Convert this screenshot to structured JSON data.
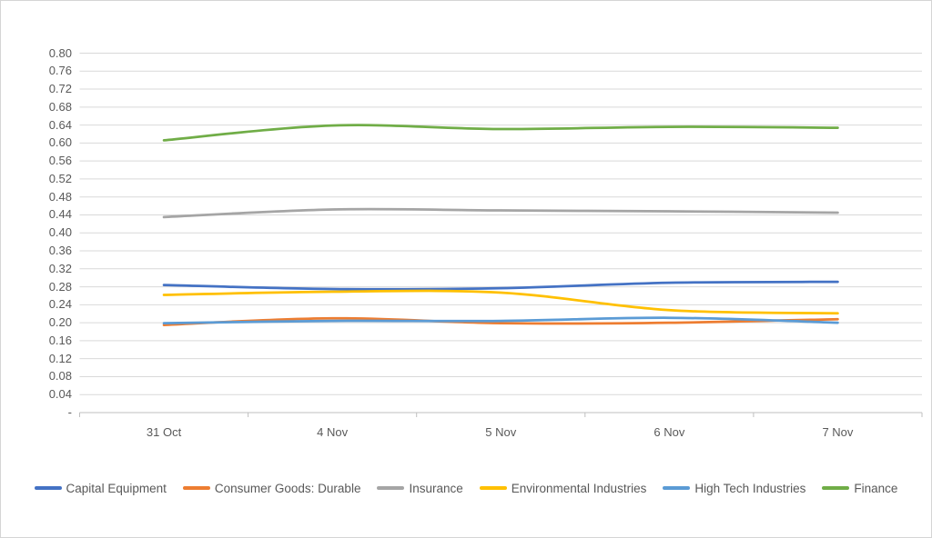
{
  "chart_data": {
    "type": "line",
    "title": "",
    "smooth": true,
    "grid": true,
    "legend_position": "bottom",
    "categories": [
      "31 Oct",
      "4 Nov",
      "5 Nov",
      "6 Nov",
      "7 Nov"
    ],
    "series": [
      {
        "name": "Capital Equipment",
        "color": "#4472C4",
        "values": [
          0.284,
          0.275,
          0.277,
          0.289,
          0.291
        ]
      },
      {
        "name": "Consumer Goods: Durable",
        "color": "#ED7D31",
        "values": [
          0.195,
          0.21,
          0.199,
          0.2,
          0.208
        ]
      },
      {
        "name": "Insurance",
        "color": "#A5A5A5",
        "values": [
          0.435,
          0.452,
          0.45,
          0.448,
          0.445
        ]
      },
      {
        "name": "Environmental Industries",
        "color": "#FFC000",
        "values": [
          0.262,
          0.269,
          0.267,
          0.228,
          0.221
        ]
      },
      {
        "name": "High Tech Industries",
        "color": "#5B9BD5",
        "values": [
          0.199,
          0.204,
          0.204,
          0.211,
          0.2
        ]
      },
      {
        "name": "Finance",
        "color": "#70AD47",
        "values": [
          0.606,
          0.639,
          0.631,
          0.636,
          0.634
        ]
      }
    ],
    "y_axis": {
      "min": 0,
      "max": 0.8,
      "step": 0.04,
      "tick_labels": [
        "0.80",
        "0.76",
        "0.72",
        "0.68",
        "0.64",
        "0.60",
        "0.56",
        "0.52",
        "0.48",
        "0.44",
        "0.40",
        "0.36",
        "0.32",
        "0.28",
        "0.24",
        "0.20",
        "0.16",
        "0.12",
        "0.08",
        "0.04",
        "-"
      ]
    },
    "style": {
      "background": "#FFFFFF",
      "border_color": "#D5D5D5",
      "grid_color": "#D9D9D9",
      "axis_color": "#BFBFBF",
      "text_color": "#595959"
    }
  }
}
